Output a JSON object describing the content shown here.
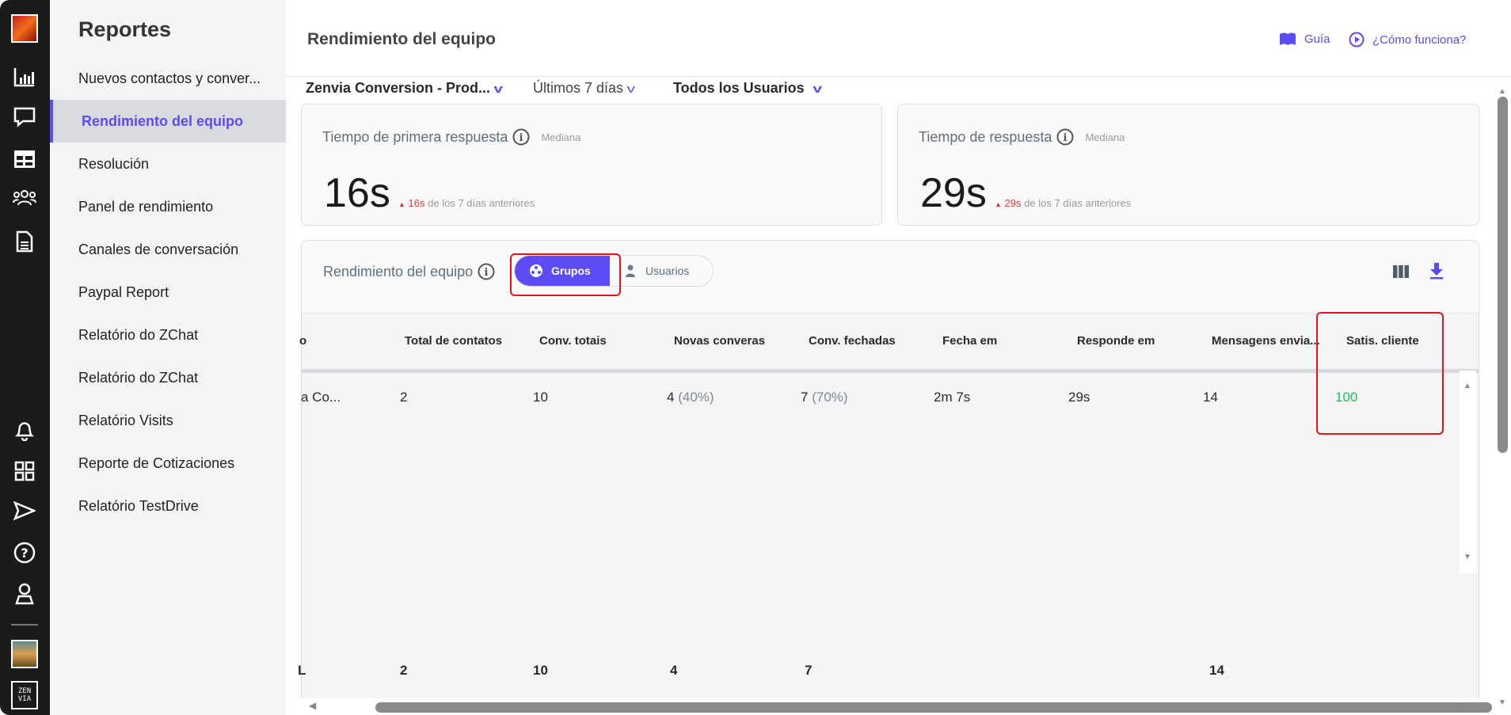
{
  "rail": {
    "icons": [
      "workspace-avatar",
      "bar-chart-icon",
      "chat-icon",
      "table-icon",
      "team-icon",
      "document-icon",
      "bell-icon",
      "apps-grid-icon",
      "send-icon",
      "help-icon",
      "user-icon",
      "profile-avatar",
      "zenvia-logo"
    ]
  },
  "sidebar": {
    "title": "Reportes",
    "items": [
      {
        "label": "Nuevos contactos y conver..."
      },
      {
        "label": "Rendimiento del equipo",
        "active": true
      },
      {
        "label": "Resolución"
      },
      {
        "label": "Panel de rendimiento"
      },
      {
        "label": "Canales de conversación"
      },
      {
        "label": "Paypal Report"
      },
      {
        "label": "Relatório do ZChat"
      },
      {
        "label": "Relatório do ZChat"
      },
      {
        "label": "Relatório Visits"
      },
      {
        "label": "Reporte de Cotizaciones"
      },
      {
        "label": "Relatório TestDrive"
      }
    ]
  },
  "header": {
    "title": "Rendimiento del equipo",
    "guide": "Guía",
    "how": "¿Cómo funciona?"
  },
  "filters": {
    "account": "Zenvia Conversion - Prod...",
    "period": "Últimos 7 días",
    "users": "Todos los Usuarios"
  },
  "cards": [
    {
      "title": "Tiempo de primera respuesta",
      "sub": "Mediana",
      "value": "16s",
      "delta": "16s",
      "delta_text": "de los 7 días anteriores"
    },
    {
      "title": "Tiempo de respuesta",
      "sub": "Mediana",
      "value": "29s",
      "delta": "29s",
      "delta_text": "de los 7 días anteriores"
    }
  ],
  "panel": {
    "title": "Rendimiento del equipo",
    "toggle": {
      "groups": "Grupos",
      "users": "Usuarios",
      "selected": "Grupos"
    }
  },
  "table": {
    "headers": [
      "o",
      "Total de contatos",
      "Conv. totais",
      "Novas converas",
      "Conv. fechadas",
      "Fecha em",
      "Responde em",
      "Mensagens envia...",
      "Satis. cliente"
    ],
    "row": {
      "name": "a Co...",
      "total": "2",
      "conv": "10",
      "novas": "4",
      "novas_pct": "(40%)",
      "fechadas": "7",
      "fechadas_pct": "(70%)",
      "fecha_em": "2m 7s",
      "responde_em": "29s",
      "mensagens": "14",
      "satis": "100"
    },
    "footer": {
      "label": "L",
      "total": "2",
      "conv": "10",
      "novas": "4",
      "fechadas": "7",
      "mensagens": "14"
    }
  },
  "colors": {
    "accent": "#5b4cf5",
    "positive": "#1dbf5c",
    "negative": "#e53935",
    "annotation": "#e0141a"
  }
}
